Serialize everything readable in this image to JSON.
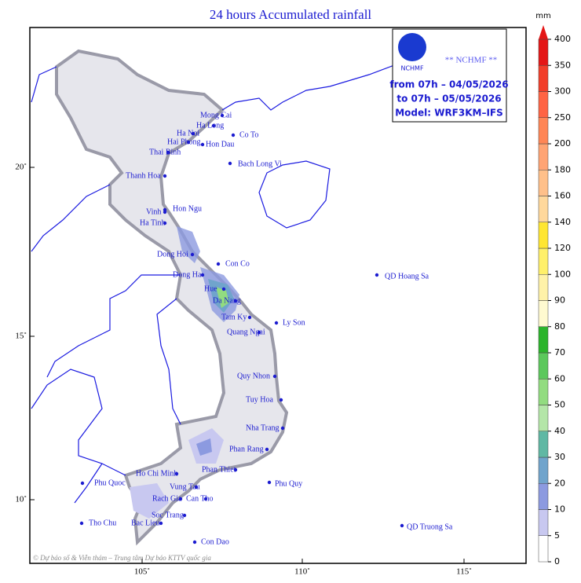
{
  "title": "24 hours Accumulated rainfall",
  "info": {
    "agency": "** NCHMF **",
    "logo_text": "NCHMF",
    "from": "from 07h – 04/05/2026",
    "to": "to 07h – 05/05/2026",
    "model": "Model: WRF3KM–IFS"
  },
  "lat_labels": [
    "20˚",
    "15˚",
    "10˚"
  ],
  "lon_labels": [
    "105˚",
    "110˚",
    "115˚"
  ],
  "places": [
    "Mong Cai",
    "Ha Long",
    "Ha Noi",
    "Co To",
    "Hai Phong",
    "Hon Dau",
    "Thai Binh",
    "Bach Long Vi",
    "Thanh Hoa",
    "Vinh",
    "Hon Ngu",
    "Ha Tinh",
    "Dong Hoi",
    "Con Co",
    "Dong Ha",
    "Hue",
    "Da Nang",
    "Tam Ky",
    "Ly Son",
    "Quang Ngai",
    "QD Hoang Sa",
    "Quy Nhon",
    "Tuy Hoa",
    "Nha Trang",
    "Phan Rang",
    "Phan Thiet",
    "Ho Chi Minh",
    "Vung Tau",
    "Phu Quy",
    "Rach Gia",
    "Can Tho",
    "Soc Trang",
    "Bac Lieu",
    "Tho Chu",
    "Con Dao",
    "QD Truong Sa",
    "Phu Quoc"
  ],
  "colorbar": {
    "unit": "mm",
    "levels": [
      0,
      5,
      10,
      20,
      30,
      40,
      50,
      60,
      70,
      80,
      90,
      100,
      120,
      140,
      160,
      180,
      200,
      250,
      300,
      350,
      400
    ],
    "colors": [
      "#ffffff",
      "#c8c8f0",
      "#8c9ae0",
      "#70a4cc",
      "#60b8a4",
      "#b4e6a8",
      "#92dc80",
      "#5cc85c",
      "#2cb42c",
      "#fffad0",
      "#fff2a8",
      "#fff06a",
      "#ffe632",
      "#ffd89c",
      "#ffc08a",
      "#ffa474",
      "#ff8656",
      "#ff6444",
      "#f23e2a",
      "#e41616"
    ]
  },
  "credit": "© Dự báo số & Viễn thám – Trung tâm Dự báo KTTV quốc gia"
}
